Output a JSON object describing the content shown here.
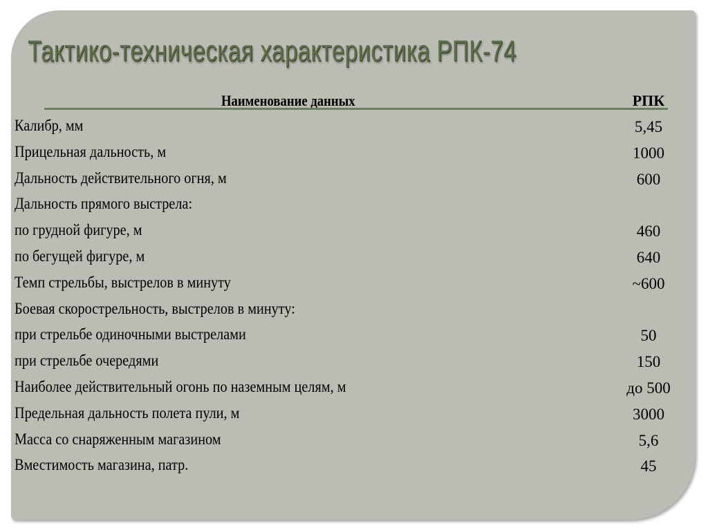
{
  "slide": {
    "title": "Тактико-техническая характеристика РПК-74",
    "table": {
      "header_name": "Наименование данных",
      "header_value": "РПК",
      "rows": [
        {
          "name": "Калибр, мм",
          "value": "5,45"
        },
        {
          "name": "Прицельная дальность, м",
          "value": "1000"
        },
        {
          "name": "Дальность действительного огня, м",
          "value": "600"
        },
        {
          "name": "Дальность прямого выстрела:",
          "value": ""
        },
        {
          "name": "по грудной фигуре, м",
          "value": "460"
        },
        {
          "name": "по бегущей фигуре, м",
          "value": "640"
        },
        {
          "name": "Темп стрельбы, выстрелов в минуту",
          "value": "~600"
        },
        {
          "name": "Боевая скорострельность, выстрелов в минуту:",
          "value": ""
        },
        {
          "name": "при стрельбе одиночными выстрелами",
          "value": "50"
        },
        {
          "name": "при стрельбе очередями",
          "value": "150"
        },
        {
          "name": "Наиболее действительный огонь по наземным целям, м",
          "value": "до 500"
        },
        {
          "name": "Предельная дальность полета пули, м",
          "value": "3000"
        },
        {
          "name": "Масса со снаряженным магазином",
          "value": "5,6"
        },
        {
          "name": "Вместимость магазина, патр.",
          "value": "45"
        }
      ]
    }
  },
  "colors": {
    "panel": "#bbbcb4",
    "title": "#5e6e48",
    "rule": "#6e7d62"
  }
}
